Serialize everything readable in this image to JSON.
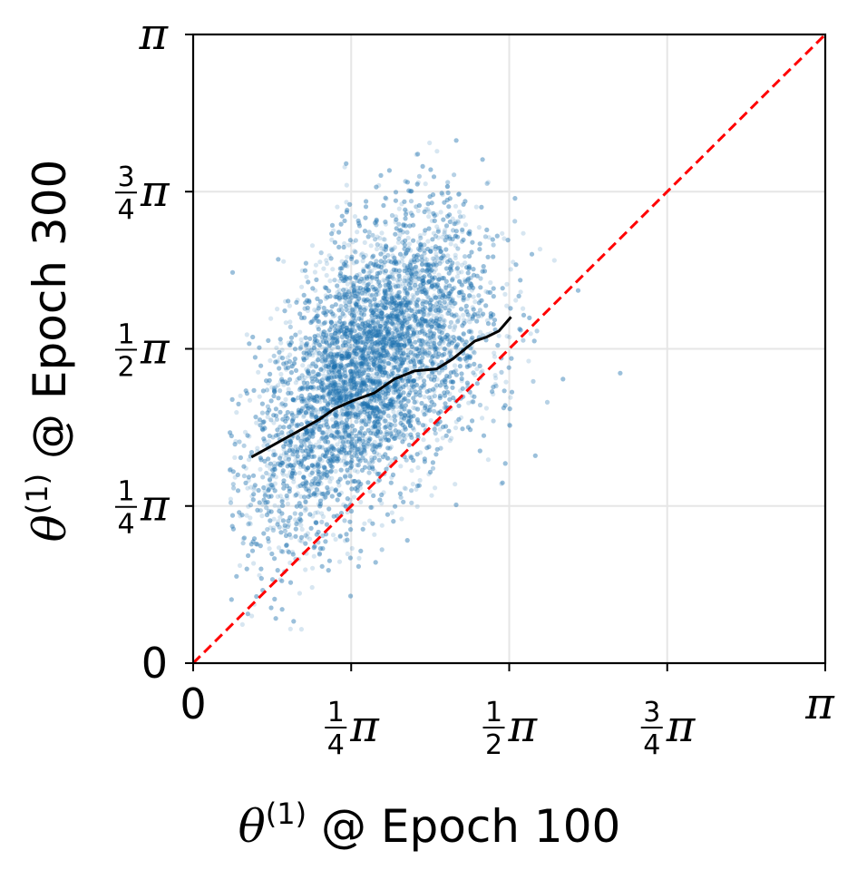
{
  "chart_data": {
    "type": "scatter",
    "xlabel": "θ(1) @ Epoch 100",
    "ylabel": "θ(1) @ Epoch 300",
    "xlabel_parts": {
      "symbol": "θ",
      "superscript": "(1)",
      "text": " @ Epoch 100"
    },
    "ylabel_parts": {
      "symbol": "θ",
      "superscript": "(1)",
      "text": " @ Epoch 300"
    },
    "xlim": [
      0,
      3.14159
    ],
    "ylim": [
      0,
      3.14159
    ],
    "grid": true,
    "x_ticks": [
      {
        "value": 0,
        "label": "0"
      },
      {
        "value": 0.7854,
        "num": "1",
        "den": "4",
        "sym": "π"
      },
      {
        "value": 1.5708,
        "num": "1",
        "den": "2",
        "sym": "π"
      },
      {
        "value": 2.3562,
        "num": "3",
        "den": "4",
        "sym": "π"
      },
      {
        "value": 3.14159,
        "sym": "π"
      }
    ],
    "y_ticks": [
      {
        "value": 0,
        "label": "0"
      },
      {
        "value": 0.7854,
        "num": "1",
        "den": "4",
        "sym": "π"
      },
      {
        "value": 1.5708,
        "num": "1",
        "den": "2",
        "sym": "π"
      },
      {
        "value": 2.3562,
        "num": "3",
        "den": "4",
        "sym": "π"
      },
      {
        "value": 3.14159,
        "sym": "π"
      }
    ],
    "scatter": {
      "color": "#1f77b4",
      "opacity": 0.18,
      "n_points": 9000,
      "x_center": 0.88,
      "x_spread": 0.29,
      "x_range": [
        0.18,
        2.45
      ],
      "y_mean": [
        [
          0.3,
          0.9
        ],
        [
          0.8,
          1.45
        ],
        [
          1.2,
          1.7
        ],
        [
          1.6,
          1.75
        ]
      ],
      "y_spread": 0.33,
      "y_range": [
        0.12,
        2.65
      ]
    },
    "series": [
      {
        "style": "trend",
        "color": "#000000",
        "x": [
          0.29,
          0.38,
          0.47,
          0.56,
          0.63,
          0.7,
          0.79,
          0.9,
          1.0,
          1.1,
          1.21,
          1.29,
          1.4,
          1.46,
          1.52,
          1.58
        ],
        "y": [
          1.03,
          1.08,
          1.13,
          1.18,
          1.22,
          1.27,
          1.31,
          1.35,
          1.42,
          1.46,
          1.47,
          1.52,
          1.61,
          1.63,
          1.66,
          1.73
        ]
      },
      {
        "style": "reference",
        "color": "#ff0000",
        "dash": true,
        "x": [
          0,
          3.14159
        ],
        "y": [
          0,
          3.14159
        ]
      }
    ]
  }
}
